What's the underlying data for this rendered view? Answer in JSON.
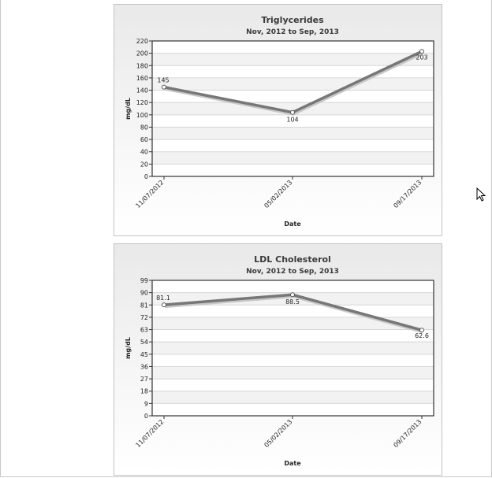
{
  "chart_data": [
    {
      "type": "line",
      "title": "Triglycerides",
      "subtitle": "Nov, 2012 to Sep, 2013",
      "xlabel": "Date",
      "ylabel": "mg/dL",
      "categories": [
        "11/07/2012",
        "05/02/2013",
        "09/17/2013"
      ],
      "values": [
        145,
        104,
        203
      ],
      "data_labels": [
        "145",
        "104",
        "203"
      ],
      "ylim": [
        0,
        220
      ],
      "yticks": [
        0,
        20,
        40,
        60,
        80,
        100,
        120,
        140,
        160,
        180,
        200,
        220
      ],
      "grid": true,
      "line_color": "#777777"
    },
    {
      "type": "line",
      "title": "LDL Cholesterol",
      "subtitle": "Nov, 2012 to Sep, 2013",
      "xlabel": "Date",
      "ylabel": "mg/dL",
      "categories": [
        "11/07/2012",
        "05/02/2013",
        "09/17/2013"
      ],
      "values": [
        81.1,
        88.5,
        62.6
      ],
      "data_labels": [
        "81.1",
        "88.5",
        "62.6"
      ],
      "ylim": [
        0,
        99
      ],
      "yticks": [
        0,
        9,
        18,
        27,
        36,
        45,
        54,
        63,
        72,
        81,
        90,
        99
      ],
      "grid": true,
      "line_color": "#777777"
    }
  ],
  "cursor": {
    "icon": "mouse-pointer-icon"
  }
}
